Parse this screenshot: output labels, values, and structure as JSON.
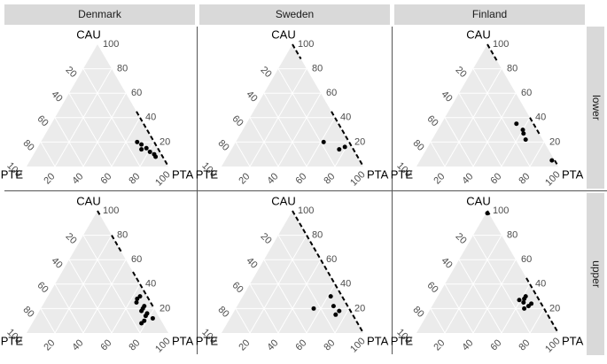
{
  "chart_data": {
    "type": "ternary",
    "columns": [
      "Denmark",
      "Sweden",
      "Finland"
    ],
    "rows": [
      "lower",
      "upper"
    ],
    "axes": {
      "top": "CAU",
      "left": "PTE",
      "right": "PTA"
    },
    "ticks": [
      20,
      40,
      60,
      80,
      100
    ],
    "point_color": "#000000",
    "triangle_color": "#ebebeb",
    "panels": [
      {
        "points": {
          "cau": [
            18,
            15,
            12,
            10,
            8,
            20,
            14
          ],
          "pte": [
            10,
            8,
            7,
            5,
            5,
            12,
            12
          ],
          "pta": [
            72,
            77,
            81,
            85,
            87,
            68,
            74
          ]
        },
        "line": {
          "cau": [
            45,
            0
          ],
          "pte": [
            0,
            0
          ],
          "pta": [
            55,
            100
          ]
        }
      },
      {
        "points": {
          "cau": [
            20,
            14,
            16
          ],
          "pte": [
            18,
            10,
            5
          ],
          "pta": [
            62,
            76,
            79
          ]
        },
        "line": {
          "cau": [
            100,
            88,
            null,
            45,
            0
          ],
          "pte": [
            0,
            0,
            null,
            0,
            0
          ],
          "pta": [
            0,
            12,
            null,
            55,
            100
          ]
        }
      },
      {
        "points": {
          "cau": [
            35,
            30,
            27,
            22,
            5
          ],
          "pte": [
            12,
            10,
            11,
            12,
            2
          ],
          "pta": [
            53,
            60,
            62,
            66,
            93
          ]
        },
        "line": {
          "cau": [
            100,
            85,
            null,
            40,
            25,
            null,
            5,
            0
          ],
          "pte": [
            0,
            0,
            null,
            0,
            0,
            null,
            0,
            0
          ],
          "pta": [
            0,
            15,
            null,
            60,
            75,
            null,
            95,
            100
          ]
        }
      },
      {
        "points": {
          "cau": [
            28,
            25,
            22,
            20,
            18,
            16,
            14,
            12,
            10,
            8,
            30
          ],
          "pte": [
            8,
            10,
            6,
            8,
            10,
            7,
            9,
            5,
            12,
            15,
            5
          ],
          "pta": [
            64,
            65,
            72,
            72,
            72,
            77,
            77,
            83,
            78,
            77,
            65
          ]
        },
        "line": {
          "cau": [
            100,
            95,
            null,
            80,
            65,
            null,
            50,
            20
          ],
          "pte": [
            0,
            0,
            null,
            0,
            0,
            null,
            0,
            0
          ],
          "pta": [
            0,
            5,
            null,
            20,
            35,
            null,
            50,
            80
          ]
        }
      },
      {
        "points": {
          "cau": [
            20,
            22,
            18,
            15,
            30
          ],
          "pte": [
            25,
            10,
            8,
            12,
            8
          ],
          "pta": [
            55,
            68,
            74,
            73,
            62
          ]
        },
        "line": {
          "cau": [
            100,
            0
          ],
          "pte": [
            0,
            0
          ],
          "pta": [
            0,
            100
          ]
        }
      },
      {
        "points": {
          "cau": [
            98,
            30,
            28,
            25,
            22,
            20,
            24,
            27
          ],
          "pte": [
            1,
            8,
            10,
            12,
            10,
            14,
            7,
            14
          ],
          "pta": [
            1,
            62,
            62,
            63,
            68,
            66,
            69,
            59
          ]
        },
        "line": {
          "cau": [
            100,
            95,
            null,
            45,
            0
          ],
          "pte": [
            0,
            0,
            null,
            0,
            0
          ],
          "pta": [
            0,
            5,
            null,
            55,
            100
          ]
        }
      }
    ]
  }
}
